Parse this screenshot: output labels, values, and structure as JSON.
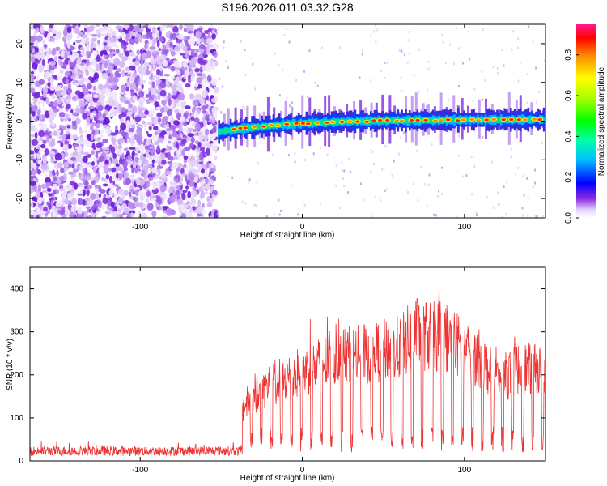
{
  "colors": {
    "spec_dot": "#7a1fe0",
    "spec_light": "#c9a6f2",
    "snr_line": "#ee3333"
  },
  "chart_data": [
    {
      "type": "heatmap",
      "title": "S196.2026.011.03.32.G28",
      "xlabel": "Height of straight line (km)",
      "ylabel": "Frequency (Hz)",
      "xlim": [
        -168,
        150
      ],
      "ylim": [
        -25,
        25
      ],
      "xticks": [
        -100,
        0,
        100
      ],
      "xtick_labels": [
        "-100",
        "0",
        "100"
      ],
      "yticks": [
        -20,
        -10,
        0,
        10,
        20
      ],
      "ytick_labels": [
        "-20",
        "-10",
        "0",
        "10",
        "20"
      ],
      "noise_region_x": [
        -168,
        -53
      ],
      "signal_track": [
        {
          "x": -52,
          "f": -2.8
        },
        {
          "x": -40,
          "f": -2.0
        },
        {
          "x": -20,
          "f": -1.2
        },
        {
          "x": 0,
          "f": -0.6
        },
        {
          "x": 20,
          "f": -0.2
        },
        {
          "x": 50,
          "f": 0.1
        },
        {
          "x": 100,
          "f": 0.3
        },
        {
          "x": 150,
          "f": 0.4
        }
      ],
      "colorbar": {
        "label": "Normalized spectral amplitude",
        "range": [
          0.0,
          0.95
        ],
        "ticks": [
          0.0,
          0.2,
          0.4,
          0.6,
          0.8
        ],
        "tick_labels": [
          "0.0",
          "0.2",
          "0.4",
          "0.6",
          "0.8"
        ]
      }
    },
    {
      "type": "line",
      "xlabel": "Height of straight line (km)",
      "ylabel": "SNR (10 * v/v)",
      "xlim": [
        -168,
        150
      ],
      "ylim": [
        0,
        450
      ],
      "xticks": [
        -100,
        0,
        100
      ],
      "xtick_labels": [
        "-100",
        "0",
        "100"
      ],
      "yticks": [
        0,
        100,
        200,
        300,
        400
      ],
      "ytick_labels": [
        "0",
        "100",
        "200",
        "300",
        "400"
      ],
      "series": [
        {
          "name": "SNR",
          "x": [
            -168,
            -120,
            -60,
            -38,
            -37,
            -35,
            -20,
            0,
            20,
            40,
            60,
            70,
            80,
            88,
            100,
            110,
            120,
            135,
            150
          ],
          "values": [
            25,
            27,
            28,
            35,
            150,
            170,
            230,
            265,
            310,
            320,
            340,
            385,
            370,
            375,
            330,
            305,
            240,
            280,
            265
          ]
        }
      ]
    }
  ]
}
